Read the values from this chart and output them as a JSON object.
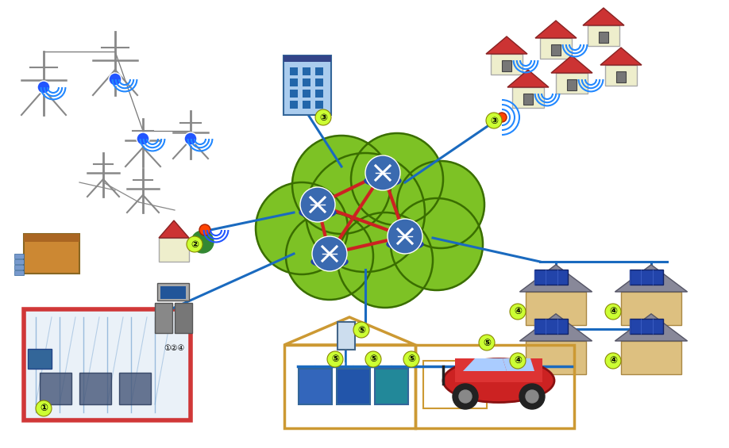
{
  "background_color": "#ffffff",
  "cloud_color": "#7dc225",
  "cloud_outline": "#3a6e00",
  "cloud_shadow": "#999999",
  "blue": "#1a6abf",
  "red_line": "#cc2222",
  "label_bg": "#ccff33",
  "router_color": "#3a6ab0",
  "fig_w": 9.18,
  "fig_h": 5.65,
  "dpi": 100
}
